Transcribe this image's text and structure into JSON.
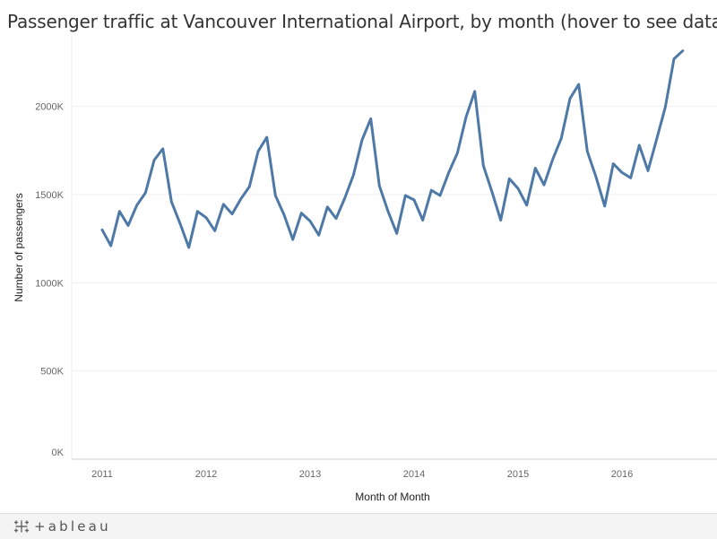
{
  "page": {
    "title": "Passenger traffic at Vancouver International Airport, by month (hover to see data)"
  },
  "footer": {
    "brand": "+ableau",
    "brand_icon": "tableau-logo-icon"
  },
  "colors": {
    "line": "#4e79a7",
    "grid": "#eeeeee",
    "axis": "#d0d0d0"
  },
  "chart_data": {
    "type": "line",
    "title": "Passenger traffic at Vancouver International Airport, by month (hover to see data)",
    "xlabel": "Month of Month",
    "ylabel": "Number of passengers",
    "x_ticks": [
      "2011",
      "2012",
      "2013",
      "2014",
      "2015",
      "2016"
    ],
    "y_ticks": [
      "0K",
      "500K",
      "1000K",
      "1500K",
      "2000K"
    ],
    "ylim": [
      0,
      2400000
    ],
    "x_start": "2011-01",
    "series": [
      {
        "name": "Passengers",
        "values": [
          1300000,
          1210000,
          1405000,
          1325000,
          1440000,
          1510000,
          1695000,
          1760000,
          1460000,
          1335000,
          1200000,
          1405000,
          1370000,
          1295000,
          1445000,
          1390000,
          1475000,
          1545000,
          1745000,
          1825000,
          1495000,
          1385000,
          1245000,
          1395000,
          1350000,
          1270000,
          1430000,
          1365000,
          1480000,
          1610000,
          1810000,
          1930000,
          1550000,
          1405000,
          1280000,
          1495000,
          1470000,
          1355000,
          1525000,
          1495000,
          1625000,
          1735000,
          1940000,
          2085000,
          1665000,
          1515000,
          1355000,
          1590000,
          1535000,
          1440000,
          1650000,
          1555000,
          1700000,
          1820000,
          2045000,
          2125000,
          1745000,
          1600000,
          1435000,
          1675000,
          1625000,
          1595000,
          1780000,
          1635000,
          1815000,
          1995000,
          2270000,
          2315000
        ]
      }
    ]
  }
}
